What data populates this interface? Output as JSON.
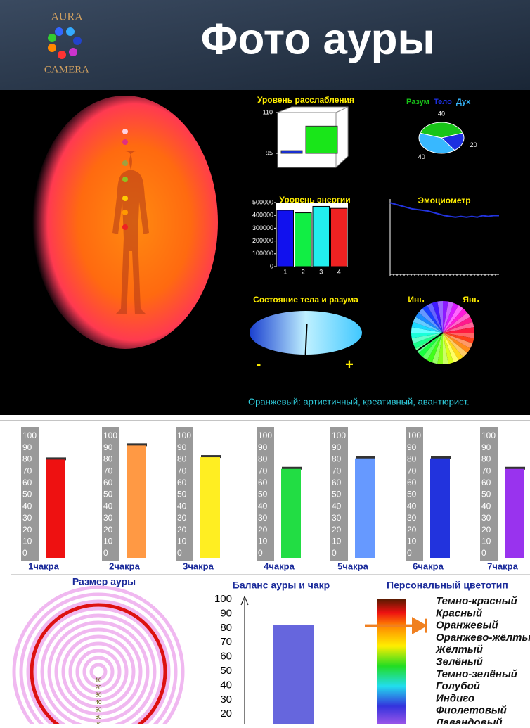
{
  "header": {
    "logo_top": "AURA",
    "logo_bottom": "CAMERA",
    "title": "Фото ауры"
  },
  "aura_caption": "Оранжевый: артистичный, креативный, авантюрист.",
  "chart_data": [
    {
      "type": "bar3d",
      "title": "Уровень расслабления",
      "values": [
        96,
        105
      ],
      "colors": [
        "#1a2fd0",
        "#19e619"
      ],
      "ylim": [
        95,
        110
      ],
      "yticks": [
        95,
        110
      ]
    },
    {
      "type": "pie",
      "categories": [
        "Разум",
        "Тело",
        "Дух"
      ],
      "values": [
        40,
        20,
        40
      ],
      "colors": [
        "#18c418",
        "#1c2fe0",
        "#38b8ff"
      ]
    },
    {
      "type": "bar",
      "title": "Уровень энергии",
      "categories": [
        "1",
        "2",
        "3",
        "4"
      ],
      "values": [
        440000,
        420000,
        470000,
        455000
      ],
      "colors": [
        "#1111ee",
        "#11ee44",
        "#22eeee",
        "#ee2222"
      ],
      "ylim": [
        0,
        500000
      ],
      "yticks": [
        0,
        100000,
        200000,
        300000,
        400000,
        500000
      ]
    },
    {
      "type": "line",
      "title": "Эмоциометр",
      "values": [
        95,
        93,
        91,
        89,
        87,
        86,
        85,
        84,
        82,
        80,
        78,
        77,
        76,
        77,
        76,
        77,
        76,
        78,
        77,
        78,
        78
      ],
      "color": "#2233dd",
      "ylim": [
        0,
        100
      ]
    },
    {
      "type": "gauge",
      "title": "Состояние тела и разума",
      "min_label": "-",
      "max_label": "+",
      "value": 0.02,
      "xlim": [
        -1,
        1
      ]
    },
    {
      "type": "wheel",
      "left_label": "Инь",
      "right_label": "Янь",
      "value": 215
    },
    {
      "type": "chakra",
      "categories": [
        "1чакра",
        "2чакра",
        "3чакра",
        "4чакра",
        "5чакра",
        "6чакра",
        "7чакра"
      ],
      "values": [
        80,
        92,
        82,
        72,
        81,
        81,
        72
      ],
      "colors": [
        "#ee1111",
        "#ff9944",
        "#ffee22",
        "#22dd44",
        "#6699ff",
        "#2233dd",
        "#9933ee"
      ],
      "ylim": [
        0,
        100
      ],
      "yticks": [
        0,
        10,
        20,
        30,
        40,
        50,
        60,
        70,
        80,
        90,
        100
      ]
    },
    {
      "type": "rings",
      "title": "Размер ауры",
      "value": 95,
      "ticks": [
        10,
        20,
        30,
        40,
        50,
        60,
        70
      ]
    },
    {
      "type": "bar",
      "title": "Баланс ауры и чакр",
      "values": [
        82
      ],
      "color": "#6666dd",
      "ylim": [
        0,
        100
      ],
      "yticks": [
        20,
        30,
        40,
        50,
        60,
        70,
        80,
        90,
        100
      ]
    },
    {
      "type": "colorscale",
      "title": "Персональный цветотип",
      "categories": [
        "Темно-красный",
        "Красный",
        "Оранжевый",
        "Оранжево-жёлтый",
        "Жёлтый",
        "Зелёный",
        "Темно-зелёный",
        "Голубой",
        "Индиго",
        "Фиолетовый",
        "Лавандовый"
      ],
      "selected": 2
    }
  ]
}
